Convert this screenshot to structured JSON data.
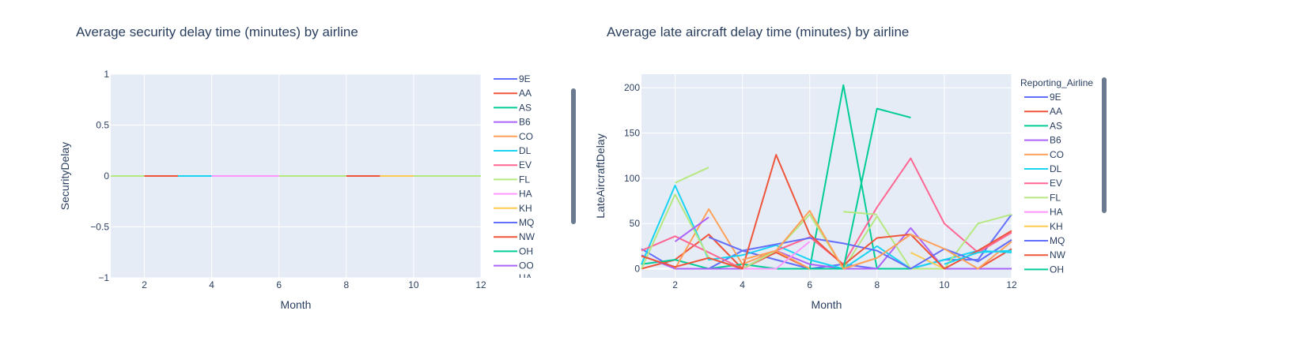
{
  "chart_data": [
    {
      "type": "line",
      "title": "Average security delay time (minutes) by airline",
      "xlabel": "Month",
      "ylabel": "SecurityDelay",
      "xlim": [
        1,
        12
      ],
      "ylim": [
        -1,
        1
      ],
      "x_ticks": [
        2,
        4,
        6,
        8,
        10,
        12
      ],
      "y_ticks": [
        1,
        0.5,
        0,
        -0.5,
        -1
      ],
      "y_tick_labels": [
        "1",
        "0.5",
        "0",
        "−0.5",
        "−1"
      ],
      "grid": true,
      "legend_position": "right",
      "legend_title": "",
      "legend_cutoff_label": "UA",
      "series": [
        {
          "name": "9E",
          "color": "#636efa",
          "points": []
        },
        {
          "name": "AA",
          "color": "#ef553b",
          "points": []
        },
        {
          "name": "AS",
          "color": "#00cc96",
          "points": []
        },
        {
          "name": "B6",
          "color": "#ab63fa",
          "points": []
        },
        {
          "name": "CO",
          "color": "#ffa15a",
          "points": []
        },
        {
          "name": "DL",
          "color": "#19d3f3",
          "points": []
        },
        {
          "name": "EV",
          "color": "#ff6692",
          "points": []
        },
        {
          "name": "FL",
          "color": "#b6e880",
          "points": [
            [
              1,
              0
            ],
            [
              2,
              0
            ]
          ]
        },
        {
          "name": "HA",
          "color": "#ff97ff",
          "points": []
        },
        {
          "name": "KH",
          "color": "#fecb52",
          "points": []
        },
        {
          "name": "MQ",
          "color": "#636efa",
          "points": []
        },
        {
          "name": "NW",
          "color": "#ef553b",
          "points": [
            [
              2,
              0
            ],
            [
              3,
              0
            ]
          ]
        },
        {
          "name": "OH",
          "color": "#00cc96",
          "points": []
        },
        {
          "name": "OO",
          "color": "#ab63fa",
          "points": []
        },
        {
          "name": "",
          "color": "#ffa15a",
          "points": []
        },
        {
          "name": "",
          "color": "#19d3f3",
          "points": [
            [
              3,
              0
            ],
            [
              4,
              0
            ]
          ]
        },
        {
          "name": "",
          "color": "#ff6692",
          "points": []
        },
        {
          "name": "",
          "color": "#b6e880",
          "points": [
            [
              6,
              0
            ],
            [
              8,
              0
            ]
          ]
        },
        {
          "name": "",
          "color": "#ff97ff",
          "points": [
            [
              4,
              0
            ],
            [
              6,
              0
            ]
          ]
        },
        {
          "name": "",
          "color": "#fecb52",
          "points": [
            [
              9,
              0
            ],
            [
              10,
              0
            ]
          ]
        },
        {
          "name": "",
          "color": "#636efa",
          "points": []
        },
        {
          "name": "",
          "color": "#ef553b",
          "points": [
            [
              8,
              0
            ],
            [
              9,
              0
            ]
          ]
        },
        {
          "name": "",
          "color": "#00cc96",
          "points": []
        },
        {
          "name": "",
          "color": "#ab63fa",
          "points": []
        },
        {
          "name": "",
          "color": "#ffa15a",
          "points": []
        },
        {
          "name": "",
          "color": "#19d3f3",
          "points": []
        },
        {
          "name": "",
          "color": "#ff6692",
          "points": []
        },
        {
          "name": "",
          "color": "#b6e880",
          "points": [
            [
              10,
              0
            ],
            [
              12,
              0
            ]
          ]
        }
      ]
    },
    {
      "type": "line",
      "title": "Average late aircraft delay time (minutes) by airline",
      "xlabel": "Month",
      "ylabel": "LateAircraftDelay",
      "xlim": [
        1,
        12
      ],
      "ylim": [
        -10,
        215
      ],
      "x_ticks": [
        2,
        4,
        6,
        8,
        10,
        12
      ],
      "y_ticks": [
        200,
        150,
        100,
        50,
        0
      ],
      "y_tick_labels": [
        "200",
        "150",
        "100",
        "50",
        "0"
      ],
      "grid": true,
      "legend_position": "right",
      "legend_title": "Reporting_Airline",
      "series": [
        {
          "name": "9E",
          "color": "#636efa",
          "points": [
            [
              1,
              22
            ],
            [
              2,
              0
            ],
            [
              3,
              0
            ],
            [
              4,
              20
            ],
            [
              5,
              10
            ],
            [
              6,
              0
            ],
            [
              7,
              5
            ],
            [
              8,
              0
            ],
            [
              9,
              0
            ],
            [
              10,
              10
            ],
            [
              11,
              10
            ],
            [
              12,
              60
            ]
          ]
        },
        {
          "name": "AA",
          "color": "#ef553b",
          "points": [
            [
              1,
              0
            ],
            [
              2,
              10
            ],
            [
              3,
              38
            ],
            [
              4,
              0
            ],
            [
              5,
              18
            ],
            [
              6,
              0
            ],
            [
              7,
              0
            ],
            [
              8,
              0
            ],
            [
              9,
              0
            ],
            [
              10,
              0
            ],
            [
              11,
              0
            ],
            [
              12,
              22
            ]
          ]
        },
        {
          "name": "AS",
          "color": "#00cc96",
          "points": [
            [
              1,
              5
            ],
            [
              2,
              10
            ],
            [
              3,
              0
            ],
            [
              4,
              5
            ],
            [
              5,
              0
            ],
            [
              6,
              0
            ],
            [
              7,
              203
            ],
            [
              8,
              0
            ],
            [
              9,
              0
            ]
          ]
        },
        {
          "name": "B6",
          "color": "#ab63fa",
          "points": [
            [
              1,
              15
            ],
            [
              2,
              0
            ],
            [
              3,
              0
            ],
            [
              4,
              0
            ],
            [
              5,
              20
            ],
            [
              6,
              5
            ],
            [
              7,
              0
            ],
            [
              8,
              0
            ],
            [
              9,
              45
            ],
            [
              10,
              0
            ],
            [
              11,
              0
            ],
            [
              12,
              0
            ]
          ]
        },
        {
          "name": "CO",
          "color": "#ffa15a",
          "points": [
            [
              2,
              0
            ],
            [
              3,
              66
            ],
            [
              4,
              5
            ],
            [
              5,
              20
            ],
            [
              6,
              0
            ],
            [
              7,
              0
            ],
            [
              8,
              12
            ]
          ]
        },
        {
          "name": "DL",
          "color": "#19d3f3",
          "points": [
            [
              1,
              5
            ],
            [
              2,
              92
            ],
            [
              3,
              10
            ],
            [
              4,
              15
            ],
            [
              5,
              26
            ],
            [
              6,
              10
            ],
            [
              7,
              0
            ],
            [
              8,
              25
            ],
            [
              9,
              0
            ],
            [
              10,
              10
            ],
            [
              11,
              20
            ],
            [
              12,
              18
            ]
          ]
        },
        {
          "name": "EV",
          "color": "#ff6692",
          "points": [
            [
              1,
              20
            ],
            [
              2,
              36
            ],
            [
              3,
              18
            ],
            [
              4,
              0
            ],
            [
              5,
              20
            ],
            [
              6,
              35
            ],
            [
              7,
              5
            ],
            [
              8,
              68
            ],
            [
              9,
              122
            ],
            [
              10,
              50
            ],
            [
              11,
              18
            ],
            [
              12,
              40
            ]
          ]
        },
        {
          "name": "FL",
          "color": "#b6e880",
          "points": [
            [
              1,
              0
            ],
            [
              2,
              82
            ],
            [
              3,
              12
            ],
            [
              4,
              0
            ],
            [
              5,
              20
            ],
            [
              6,
              60
            ],
            [
              7,
              0
            ],
            [
              8,
              58
            ],
            [
              9,
              0
            ],
            [
              10,
              0
            ],
            [
              11,
              50
            ],
            [
              12,
              60
            ]
          ]
        },
        {
          "name": "HA",
          "color": "#ff97ff",
          "points": [
            [
              4,
              0
            ],
            [
              5,
              0
            ],
            [
              6,
              30
            ]
          ]
        },
        {
          "name": "KH",
          "color": "#fecb52",
          "points": [
            [
              9,
              18
            ],
            [
              10,
              0
            ]
          ]
        },
        {
          "name": "MQ",
          "color": "#636efa",
          "points": [
            [
              3,
              35
            ],
            [
              4,
              20
            ],
            [
              6,
              34
            ],
            [
              7,
              28
            ],
            [
              8,
              20
            ],
            [
              9,
              0
            ],
            [
              10,
              22
            ],
            [
              11,
              8
            ],
            [
              12,
              32
            ]
          ]
        },
        {
          "name": "NW",
          "color": "#ef553b",
          "points": [
            [
              1,
              14
            ],
            [
              2,
              2
            ],
            [
              3,
              12
            ],
            [
              4,
              0
            ],
            [
              5,
              126
            ],
            [
              6,
              38
            ],
            [
              7,
              4
            ],
            [
              8,
              34
            ],
            [
              9,
              38
            ],
            [
              10,
              0
            ],
            [
              11,
              20
            ],
            [
              12,
              42
            ]
          ]
        },
        {
          "name": "OH",
          "color": "#00cc96",
          "points": [
            [
              6,
              0
            ],
            [
              7,
              0
            ],
            [
              8,
              177
            ],
            [
              9,
              167
            ]
          ]
        },
        {
          "name": "",
          "color": "#ab63fa",
          "points": [
            [
              2,
              30
            ],
            [
              3,
              57
            ]
          ]
        },
        {
          "name": "",
          "color": "#b6e880",
          "points": [
            [
              2,
              95
            ],
            [
              3,
              112
            ]
          ]
        },
        {
          "name": "",
          "color": "#b6e880",
          "points": [
            [
              7,
              63
            ],
            [
              8,
              60
            ]
          ]
        },
        {
          "name": "",
          "color": "#ffa15a",
          "points": [
            [
              4,
              10
            ],
            [
              5,
              20
            ],
            [
              6,
              64
            ],
            [
              7,
              0
            ],
            [
              8,
              12
            ],
            [
              9,
              38
            ],
            [
              10,
              22
            ],
            [
              11,
              0
            ],
            [
              12,
              30
            ]
          ]
        },
        {
          "name": "",
          "color": "#19d3f3",
          "points": [
            [
              10,
              5
            ],
            [
              11,
              18
            ],
            [
              12,
              20
            ]
          ]
        }
      ]
    }
  ]
}
